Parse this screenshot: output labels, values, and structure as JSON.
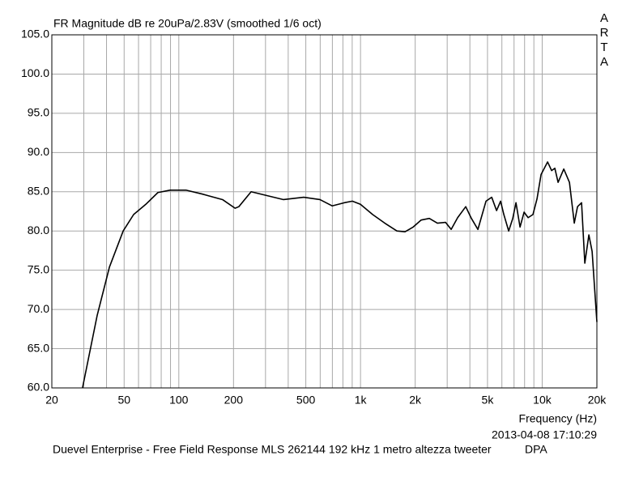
{
  "chart_data": {
    "type": "line",
    "title": "FR Magnitude dB re 20uPa/2.83V (smoothed 1/6 oct)",
    "brand": "ARTA",
    "xlabel": "Frequency (Hz)",
    "timestamp": "2013-04-08  17:10:29",
    "footer": "Duevel Enterprise - Free Field Response MLS 262144 192 kHz 1 metro altezza tweeter",
    "footer_right": "DPA",
    "xscale": "log",
    "xlim": [
      20,
      20000
    ],
    "ylim": [
      60,
      105
    ],
    "grid": true,
    "xticks": [
      20,
      50,
      100,
      200,
      500,
      {
        "value": 1000,
        "label": "1k"
      },
      {
        "value": 2000,
        "label": "2k"
      },
      {
        "value": 5000,
        "label": "5k"
      },
      {
        "value": 10000,
        "label": "10k"
      },
      {
        "value": 20000,
        "label": "20k"
      }
    ],
    "x_minor_ticks": [
      30,
      40,
      60,
      70,
      80,
      90,
      300,
      400,
      600,
      700,
      800,
      900,
      3000,
      4000,
      6000,
      7000,
      8000,
      9000
    ],
    "yticks": [
      {
        "value": 60,
        "label": "60.0"
      },
      {
        "value": 65,
        "label": "65.0"
      },
      {
        "value": 70,
        "label": "70.0"
      },
      {
        "value": 75,
        "label": "75.0"
      },
      {
        "value": 80,
        "label": "80.0"
      },
      {
        "value": 85,
        "label": "85.0"
      },
      {
        "value": 90,
        "label": "90.0"
      },
      {
        "value": 95,
        "label": "95.0"
      },
      {
        "value": 100,
        "label": "100.0"
      },
      {
        "value": 105,
        "label": "105.0"
      }
    ],
    "series": [
      {
        "name": "FR Magnitude",
        "color": "#000000",
        "x": [
          29.5,
          35.5,
          41.5,
          49.4,
          56.4,
          65.8,
          76.7,
          89.5,
          110,
          135,
          174,
          204,
          214,
          250,
          307,
          377,
          487,
          598,
          698,
          814,
          902,
          999,
          1166,
          1360,
          1586,
          1758,
          1948,
          2158,
          2392,
          2650,
          2937,
          3155,
          3425,
          3795,
          4077,
          4428,
          4906,
          5274,
          5608,
          5902,
          6150,
          6540,
          6886,
          7174,
          7552,
          7950,
          8368,
          8896,
          9366,
          9858,
          10706,
          11270,
          11738,
          12232,
          13146,
          14126,
          15018,
          15648,
          16472,
          17164,
          18068,
          18826,
          20000
        ],
        "values": [
          60,
          69.2,
          75.4,
          80,
          82.1,
          83.4,
          84.9,
          85.2,
          85.2,
          84.7,
          84,
          82.9,
          83.1,
          85,
          84.5,
          84,
          84.3,
          84,
          83.2,
          83.6,
          83.8,
          83.4,
          82.1,
          81,
          80,
          79.9,
          80.5,
          81.4,
          81.6,
          81,
          81.1,
          80.2,
          81.7,
          83.1,
          81.6,
          80.2,
          83.8,
          84.3,
          82.6,
          83.8,
          82.1,
          80,
          81.6,
          83.6,
          80.5,
          82.4,
          81.7,
          82.1,
          84.1,
          87.2,
          88.8,
          87.7,
          88,
          86.2,
          87.9,
          86.2,
          81,
          83.1,
          83.6,
          75.9,
          79.5,
          77.4,
          68.4
        ]
      }
    ]
  }
}
